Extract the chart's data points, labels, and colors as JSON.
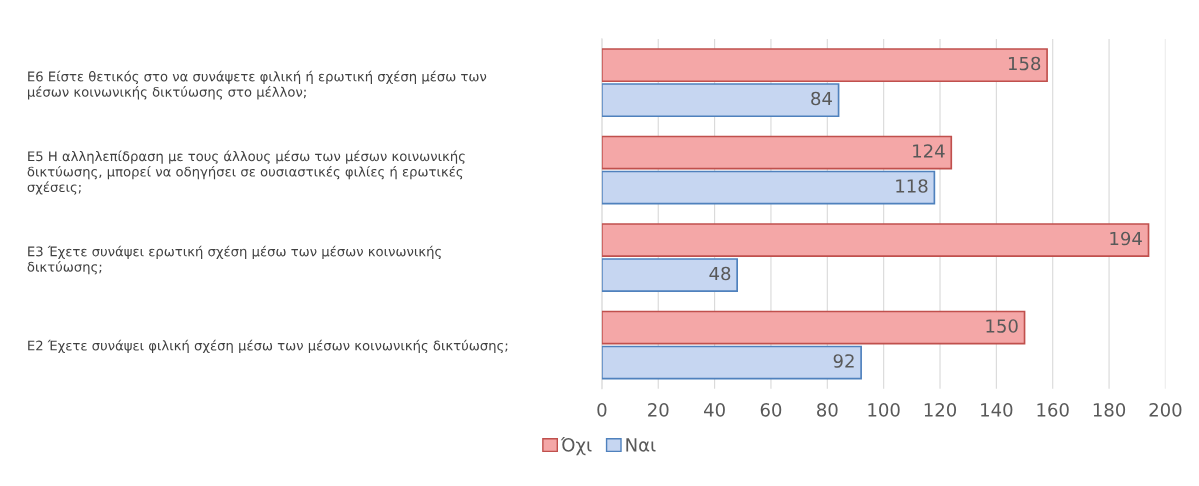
{
  "chart_data": {
    "type": "bar",
    "orientation": "horizontal",
    "categories": [
      "Ε6 Είστε θετικός στο να συνάψετε φιλική ή ερωτική σχέση μέσω των\nμέσων κοινωνικής δικτύωσης στο μέλλον;",
      "Ε5 Η αλληλεπίδραση με τους άλλους μέσω των μέσων κοινωνικής\nδικτύωσης, μπορεί να οδηγήσει σε ουσιαστικές φιλίες ή ερωτικές\nσχέσεις;",
      "Ε3 Έχετε συνάψει ερωτική σχέση μέσω των μέσων κοινωνικής\nδικτύωσης;",
      "Ε2 Έχετε συνάψει φιλική σχέση μέσω των μέσων κοινωνικής δικτύωσης;"
    ],
    "series": [
      {
        "name": "Όχι",
        "color": "#f4a7a7",
        "values": [
          158,
          124,
          194,
          150
        ]
      },
      {
        "name": "Ναι",
        "color": "#c6d6f1",
        "values": [
          84,
          118,
          48,
          92
        ]
      }
    ],
    "xlim": [
      0,
      200
    ],
    "xticks": [
      0,
      20,
      40,
      60,
      80,
      100,
      120,
      140,
      160,
      180,
      200
    ],
    "grid": "x",
    "legend": "bottom",
    "data_labels": true
  }
}
